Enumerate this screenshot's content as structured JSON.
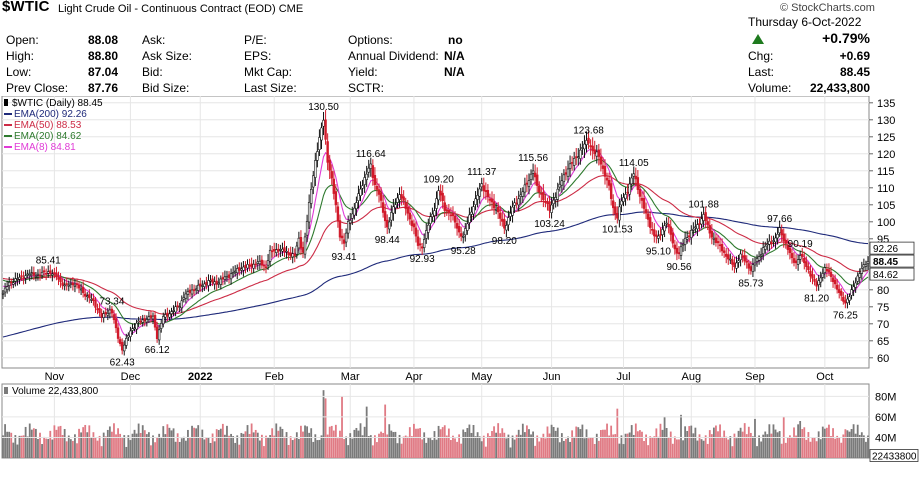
{
  "header": {
    "symbol": "$WTIC",
    "description": "Light Crude Oil - Continuous Contract (EOD)",
    "exchange": "CME",
    "brand": "© StockCharts.com",
    "date": "Thursday  6-Oct-2022",
    "change_pct": "+0.79%",
    "quote": {
      "open_label": "Open:",
      "open": "88.08",
      "high_label": "High:",
      "high": "88.80",
      "low_label": "Low:",
      "low": "87.04",
      "prev_close_label": "Prev Close:",
      "prev_close": "87.76",
      "ask_label": "Ask:",
      "ask_size_label": "Ask Size:",
      "bid_label": "Bid:",
      "bid_size_label": "Bid Size:",
      "pe_label": "P/E:",
      "eps_label": "EPS:",
      "mkt_cap_label": "Mkt Cap:",
      "last_size_label": "Last Size:",
      "options_label": "Options:",
      "options": "no",
      "annual_dividend_label": "Annual Dividend:",
      "annual_dividend": "N/A",
      "yield_label": "Yield:",
      "yield": "N/A",
      "sctr_label": "SCTR:",
      "chg_label": "Chg:",
      "chg": "+0.69",
      "last_label": "Last:",
      "last": "88.45",
      "volume_label": "Volume:",
      "volume": "22,433,800"
    }
  },
  "chart_data": {
    "type": "line",
    "title": "$WTIC (Daily) 88.45",
    "x_ticks": [
      "Nov",
      "Dec",
      "2022",
      "Feb",
      "Mar",
      "Apr",
      "May",
      "Jun",
      "Jul",
      "Aug",
      "Sep",
      "Oct"
    ],
    "y_ticks": [
      60,
      65,
      70,
      75,
      80,
      85,
      90,
      95,
      100,
      105,
      110,
      115,
      120,
      125,
      130,
      135
    ],
    "ylim": [
      57,
      137
    ],
    "price_anchors": [
      [
        0,
        79
      ],
      [
        3,
        82
      ],
      [
        8,
        83.5
      ],
      [
        12,
        84.5
      ],
      [
        18,
        84.5
      ],
      [
        22,
        85.4
      ],
      [
        26,
        84
      ],
      [
        30,
        81
      ],
      [
        34,
        82
      ],
      [
        38,
        80
      ],
      [
        41,
        78
      ],
      [
        44,
        76.5
      ],
      [
        48,
        72
      ],
      [
        52,
        74
      ],
      [
        53,
        73.34
      ],
      [
        56,
        66
      ],
      [
        58,
        62.43
      ],
      [
        62,
        68
      ],
      [
        66,
        70.5
      ],
      [
        70,
        71.5
      ],
      [
        73,
        72
      ],
      [
        75,
        66.12
      ],
      [
        78,
        72
      ],
      [
        82,
        73.5
      ],
      [
        86,
        75.5
      ],
      [
        88,
        78
      ],
      [
        92,
        80
      ],
      [
        96,
        81
      ],
      [
        100,
        82.5
      ],
      [
        104,
        82
      ],
      [
        108,
        83.5
      ],
      [
        112,
        85
      ],
      [
        116,
        86.5
      ],
      [
        120,
        87
      ],
      [
        124,
        88
      ],
      [
        128,
        87
      ],
      [
        130,
        91
      ],
      [
        134,
        92
      ],
      [
        138,
        91
      ],
      [
        142,
        90
      ],
      [
        144,
        95
      ],
      [
        146,
        91
      ],
      [
        148,
        100
      ],
      [
        150,
        110
      ],
      [
        152,
        118
      ],
      [
        154,
        124
      ],
      [
        156,
        130.5
      ],
      [
        158,
        118
      ],
      [
        160,
        112
      ],
      [
        162,
        105
      ],
      [
        164,
        96
      ],
      [
        166,
        93.41
      ],
      [
        168,
        100
      ],
      [
        171,
        103.5
      ],
      [
        174,
        110
      ],
      [
        177,
        114
      ],
      [
        179,
        116.64
      ],
      [
        181,
        111
      ],
      [
        183,
        108
      ],
      [
        185,
        103
      ],
      [
        187,
        98.44
      ],
      [
        190,
        104
      ],
      [
        193,
        108.5
      ],
      [
        196,
        104
      ],
      [
        200,
        98
      ],
      [
        202,
        93
      ],
      [
        204,
        92.93
      ],
      [
        206,
        97
      ],
      [
        208,
        101
      ],
      [
        210,
        104
      ],
      [
        212,
        109.2
      ],
      [
        215,
        104
      ],
      [
        218,
        102
      ],
      [
        220,
        100
      ],
      [
        222,
        97
      ],
      [
        224,
        95.28
      ],
      [
        227,
        102
      ],
      [
        230,
        106
      ],
      [
        233,
        111.37
      ],
      [
        236,
        107
      ],
      [
        240,
        104
      ],
      [
        242,
        101
      ],
      [
        244,
        98.2
      ],
      [
        248,
        104
      ],
      [
        252,
        108
      ],
      [
        255,
        111
      ],
      [
        258,
        115.56
      ],
      [
        260,
        110
      ],
      [
        262,
        108
      ],
      [
        264,
        106
      ],
      [
        266,
        103.24
      ],
      [
        269,
        108
      ],
      [
        272,
        112
      ],
      [
        275,
        116
      ],
      [
        278,
        118
      ],
      [
        280,
        120
      ],
      [
        282,
        122
      ],
      [
        285,
        123.68
      ],
      [
        287,
        121
      ],
      [
        290,
        119
      ],
      [
        293,
        114
      ],
      [
        295,
        110
      ],
      [
        297,
        104
      ],
      [
        299,
        101.53
      ],
      [
        301,
        106
      ],
      [
        303,
        108
      ],
      [
        305,
        111
      ],
      [
        307,
        114.05
      ],
      [
        309,
        110
      ],
      [
        311,
        106
      ],
      [
        313,
        102
      ],
      [
        315,
        99
      ],
      [
        317,
        96
      ],
      [
        319,
        95.1
      ],
      [
        321,
        98
      ],
      [
        323,
        100
      ],
      [
        325,
        96
      ],
      [
        327,
        92
      ],
      [
        329,
        90.56
      ],
      [
        332,
        95
      ],
      [
        335,
        97
      ],
      [
        338,
        99
      ],
      [
        341,
        101.88
      ],
      [
        344,
        97
      ],
      [
        347,
        94
      ],
      [
        350,
        92
      ],
      [
        353,
        89
      ],
      [
        356,
        87
      ],
      [
        359,
        90
      ],
      [
        362,
        88
      ],
      [
        364,
        85.73
      ],
      [
        367,
        89
      ],
      [
        370,
        92
      ],
      [
        373,
        94
      ],
      [
        376,
        95
      ],
      [
        378,
        97.66
      ],
      [
        380,
        95
      ],
      [
        382,
        92
      ],
      [
        384,
        89
      ],
      [
        386,
        88
      ],
      [
        388,
        90.19
      ],
      [
        390,
        88
      ],
      [
        392,
        86
      ],
      [
        394,
        83
      ],
      [
        396,
        81.2
      ],
      [
        398,
        84
      ],
      [
        400,
        86
      ],
      [
        402,
        85
      ],
      [
        404,
        83
      ],
      [
        406,
        80
      ],
      [
        408,
        78
      ],
      [
        410,
        76.25
      ],
      [
        412,
        78
      ],
      [
        414,
        81
      ],
      [
        416,
        84
      ],
      [
        418,
        86
      ],
      [
        420,
        87.76
      ],
      [
        421,
        88.45
      ]
    ],
    "series": [
      {
        "name": "$WTIC (Daily)",
        "label": "$WTIC (Daily) 88.45",
        "color": "#000000"
      },
      {
        "name": "EMA(200)",
        "label": "EMA(200) 92.26",
        "last": 92.26,
        "color": "#1f2a7a"
      },
      {
        "name": "EMA(50)",
        "label": "EMA(50) 88.53",
        "last": 88.53,
        "color": "#cc2b45"
      },
      {
        "name": "EMA(20)",
        "label": "EMA(20) 84.62",
        "last": 84.62,
        "color": "#2e7a2e"
      },
      {
        "name": "EMA(8)",
        "label": "EMA(8) 84.81",
        "last": 84.81,
        "color": "#e03ad6"
      }
    ],
    "annotations": [
      {
        "text": "85.41",
        "x": 22,
        "y": 85.41,
        "pos": "above"
      },
      {
        "text": "73.34",
        "x": 53,
        "y": 73.34,
        "pos": "above"
      },
      {
        "text": "62.43",
        "x": 58,
        "y": 62.43,
        "pos": "below"
      },
      {
        "text": "66.12",
        "x": 75,
        "y": 66.12,
        "pos": "below"
      },
      {
        "text": "130.50",
        "x": 156,
        "y": 130.5,
        "pos": "above"
      },
      {
        "text": "93.41",
        "x": 166,
        "y": 93.41,
        "pos": "below"
      },
      {
        "text": "116.64",
        "x": 179,
        "y": 116.64,
        "pos": "above"
      },
      {
        "text": "98.44",
        "x": 187,
        "y": 98.44,
        "pos": "below"
      },
      {
        "text": "92.93",
        "x": 204,
        "y": 92.93,
        "pos": "below"
      },
      {
        "text": "109.20",
        "x": 212,
        "y": 109.2,
        "pos": "above"
      },
      {
        "text": "95.28",
        "x": 224,
        "y": 95.28,
        "pos": "below"
      },
      {
        "text": "111.37",
        "x": 233,
        "y": 111.37,
        "pos": "above"
      },
      {
        "text": "98.20",
        "x": 244,
        "y": 98.2,
        "pos": "below"
      },
      {
        "text": "115.56",
        "x": 258,
        "y": 115.56,
        "pos": "above"
      },
      {
        "text": "103.24",
        "x": 266,
        "y": 103.24,
        "pos": "below"
      },
      {
        "text": "123.68",
        "x": 285,
        "y": 123.68,
        "pos": "above"
      },
      {
        "text": "101.53",
        "x": 299,
        "y": 101.53,
        "pos": "below"
      },
      {
        "text": "114.05",
        "x": 307,
        "y": 114.05,
        "pos": "above"
      },
      {
        "text": "95.10",
        "x": 319,
        "y": 95.1,
        "pos": "below"
      },
      {
        "text": "90.56",
        "x": 329,
        "y": 90.56,
        "pos": "below"
      },
      {
        "text": "101.88",
        "x": 341,
        "y": 101.88,
        "pos": "above"
      },
      {
        "text": "85.73",
        "x": 364,
        "y": 85.73,
        "pos": "below"
      },
      {
        "text": "97.66",
        "x": 378,
        "y": 97.66,
        "pos": "above"
      },
      {
        "text": "90.19",
        "x": 388,
        "y": 90.19,
        "pos": "above"
      },
      {
        "text": "81.20",
        "x": 396,
        "y": 81.2,
        "pos": "below"
      },
      {
        "text": "76.25",
        "x": 410,
        "y": 76.25,
        "pos": "below"
      }
    ],
    "last_price_tags": [
      {
        "text": "92.26",
        "value": 92.26,
        "style": "outline"
      },
      {
        "text": "88.45",
        "value": 88.45,
        "style": "bold"
      },
      {
        "text": "84.62",
        "value": 84.62,
        "style": "outline"
      }
    ],
    "volume": {
      "label": "Volume 22,433,800",
      "y_ticks": [
        "40M",
        "60M",
        "80M"
      ],
      "y_tick_values": [
        40000000,
        60000000,
        80000000
      ],
      "ylim": [
        20000000,
        92000000
      ],
      "last_tag": "22433800",
      "spikes": [
        [
          156,
          86000000
        ],
        [
          157,
          78000000
        ],
        [
          165,
          80000000
        ],
        [
          177,
          70000000
        ],
        [
          186,
          72000000
        ],
        [
          299,
          68000000
        ],
        [
          322,
          60000000
        ],
        [
          330,
          62000000
        ],
        [
          366,
          58000000
        ],
        [
          380,
          60000000
        ],
        [
          388,
          56000000
        ],
        [
          410,
          48000000
        ]
      ]
    }
  }
}
